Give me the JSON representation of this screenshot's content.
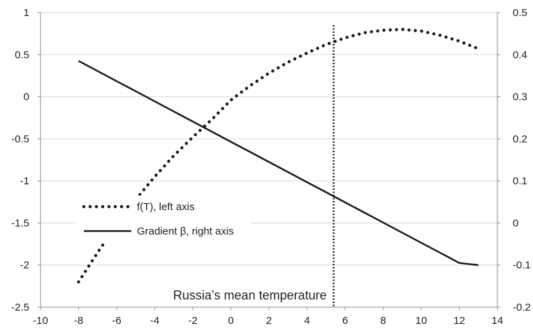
{
  "chart_data": {
    "type": "line",
    "x": [
      -8,
      -7,
      -6,
      -5,
      -4,
      -3,
      -2,
      -1,
      0,
      1,
      2,
      3,
      4,
      5,
      6,
      7,
      8,
      9,
      10,
      11,
      12,
      13
    ],
    "series": [
      {
        "name": "f(T), left axis",
        "axis": "left",
        "style": "dotted",
        "values": [
          -2.2,
          -1.85,
          -1.52,
          -1.22,
          -0.95,
          -0.7,
          -0.48,
          -0.27,
          -0.04,
          0.13,
          0.28,
          0.41,
          0.52,
          0.62,
          0.7,
          0.76,
          0.79,
          0.8,
          0.78,
          0.73,
          0.66,
          0.57
        ]
      },
      {
        "name": "Gradient β, right axis",
        "axis": "right",
        "style": "solid",
        "values": [
          0.385,
          0.361,
          0.337,
          0.313,
          0.289,
          0.265,
          0.241,
          0.217,
          0.193,
          0.169,
          0.145,
          0.121,
          0.097,
          0.073,
          0.049,
          0.025,
          0.001,
          -0.023,
          -0.047,
          -0.071,
          -0.095,
          -0.1
        ]
      }
    ],
    "xlim": [
      -10,
      14
    ],
    "xticks": [
      -10,
      -8,
      -6,
      -4,
      -2,
      0,
      2,
      4,
      6,
      8,
      10,
      12,
      14
    ],
    "ylim_left": [
      -2.5,
      1
    ],
    "yticks_left": [
      -2.5,
      -2,
      -1.5,
      -1,
      -0.5,
      0,
      0.5,
      1
    ],
    "ylim_right": [
      -0.2,
      0.5
    ],
    "yticks_right": [
      -0.2,
      -0.1,
      0,
      0.1,
      0.2,
      0.3,
      0.4,
      0.5
    ],
    "vertical_line": {
      "x": 5.4,
      "label": "Russia’s mean temperature"
    },
    "grid": true,
    "legend": {
      "position": "left-middle",
      "entries": [
        "f(T), left axis",
        "Gradient β, right axis"
      ]
    },
    "colors": {
      "line": "#1a1a1a",
      "grid": "#d9d9d9",
      "axis": "#8c8c8c"
    }
  }
}
